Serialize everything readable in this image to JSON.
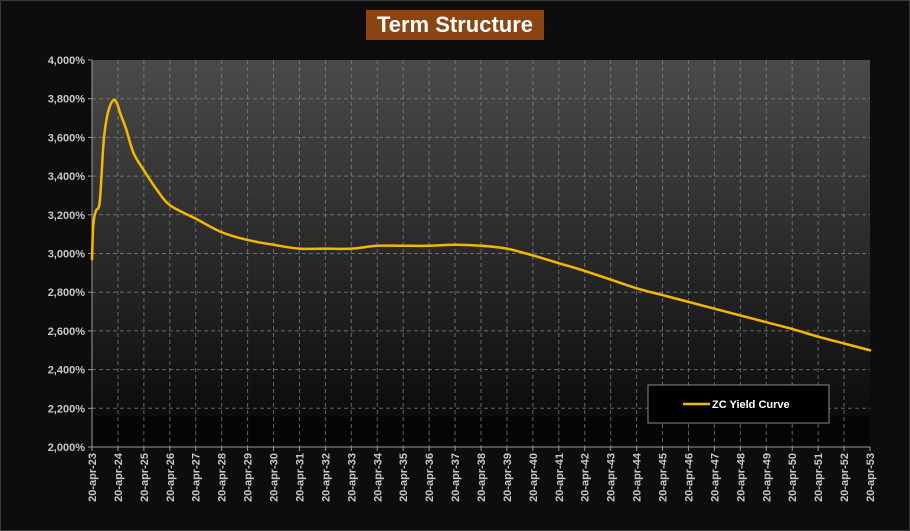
{
  "chart_data": {
    "type": "line",
    "title": "Term Structure",
    "xlabel": "",
    "ylabel": "",
    "ylim": [
      2.0,
      4.0
    ],
    "y_ticks": [
      "4,000%",
      "3,800%",
      "3,600%",
      "3,400%",
      "3,200%",
      "3,000%",
      "2,800%",
      "2,600%",
      "2,400%",
      "2,200%",
      "2,000%"
    ],
    "categories": [
      "20-apr-23",
      "20-apr-24",
      "20-apr-25",
      "20-apr-26",
      "20-apr-27",
      "20-apr-28",
      "20-apr-29",
      "20-apr-30",
      "20-apr-31",
      "20-apr-32",
      "20-apr-33",
      "20-apr-34",
      "20-apr-35",
      "20-apr-36",
      "20-apr-37",
      "20-apr-38",
      "20-apr-39",
      "20-apr-40",
      "20-apr-41",
      "20-apr-42",
      "20-apr-43",
      "20-apr-44",
      "20-apr-45",
      "20-apr-46",
      "20-apr-47",
      "20-apr-48",
      "20-apr-49",
      "20-apr-50",
      "20-apr-51",
      "20-apr-52",
      "20-apr-53"
    ],
    "grid": true,
    "legend_position": "bottom-right",
    "series": [
      {
        "name": "ZC Yield Curve",
        "color": "#f5b800",
        "x": [
          0,
          0.05,
          0.15,
          0.3,
          0.45,
          0.6,
          0.8,
          0.95,
          1.1,
          1.3,
          1.6,
          2.0,
          2.5,
          3.0,
          4.0,
          5.0,
          6.0,
          7.0,
          8.0,
          9.0,
          10.0,
          11.0,
          12.0,
          13.0,
          14.0,
          15.0,
          16.0,
          17.0,
          18.0,
          19.0,
          20.0,
          21.0,
          22.0,
          23.0,
          24.0,
          25.0,
          26.0,
          27.0,
          28.0,
          29.0,
          30.0
        ],
        "values": [
          2.97,
          3.15,
          3.22,
          3.27,
          3.58,
          3.72,
          3.79,
          3.78,
          3.72,
          3.65,
          3.52,
          3.43,
          3.33,
          3.25,
          3.18,
          3.11,
          3.07,
          3.045,
          3.025,
          3.025,
          3.025,
          3.04,
          3.04,
          3.04,
          3.045,
          3.04,
          3.025,
          2.99,
          2.95,
          2.91,
          2.865,
          2.82,
          2.785,
          2.75,
          2.715,
          2.68,
          2.645,
          2.61,
          2.57,
          2.535,
          2.5
        ]
      }
    ]
  }
}
